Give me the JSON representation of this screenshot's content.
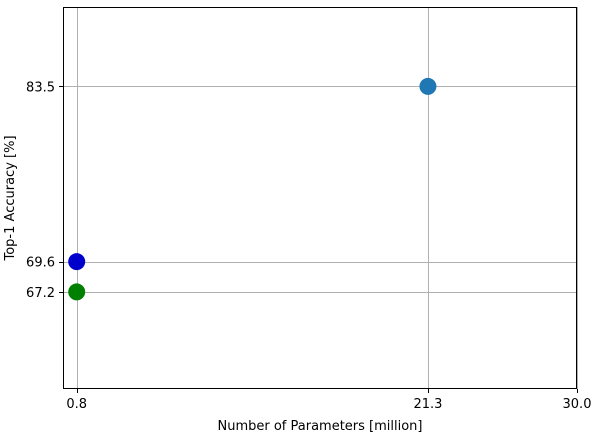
{
  "chart_data": {
    "type": "scatter",
    "title": "",
    "xlabel": "Number of Parameters [million]",
    "ylabel": "Top-1 Accuracy [%]",
    "xlim": [
      0.0,
      30.0
    ],
    "ylim": [
      59.5,
      89.8
    ],
    "grid": true,
    "legend": "none",
    "x_ticks": [
      0.8,
      21.3,
      30.0
    ],
    "x_tick_labels": [
      "0.8",
      "21.3",
      "30.0"
    ],
    "y_ticks": [
      67.2,
      69.6,
      83.5
    ],
    "y_tick_labels": [
      "67.2",
      "69.6",
      "83.5"
    ],
    "points": [
      {
        "x": 21.3,
        "y": 83.5,
        "color": "#1f77b4"
      },
      {
        "x": 0.8,
        "y": 69.6,
        "color": "#0000cc"
      },
      {
        "x": 0.8,
        "y": 67.2,
        "color": "#008000"
      }
    ]
  }
}
